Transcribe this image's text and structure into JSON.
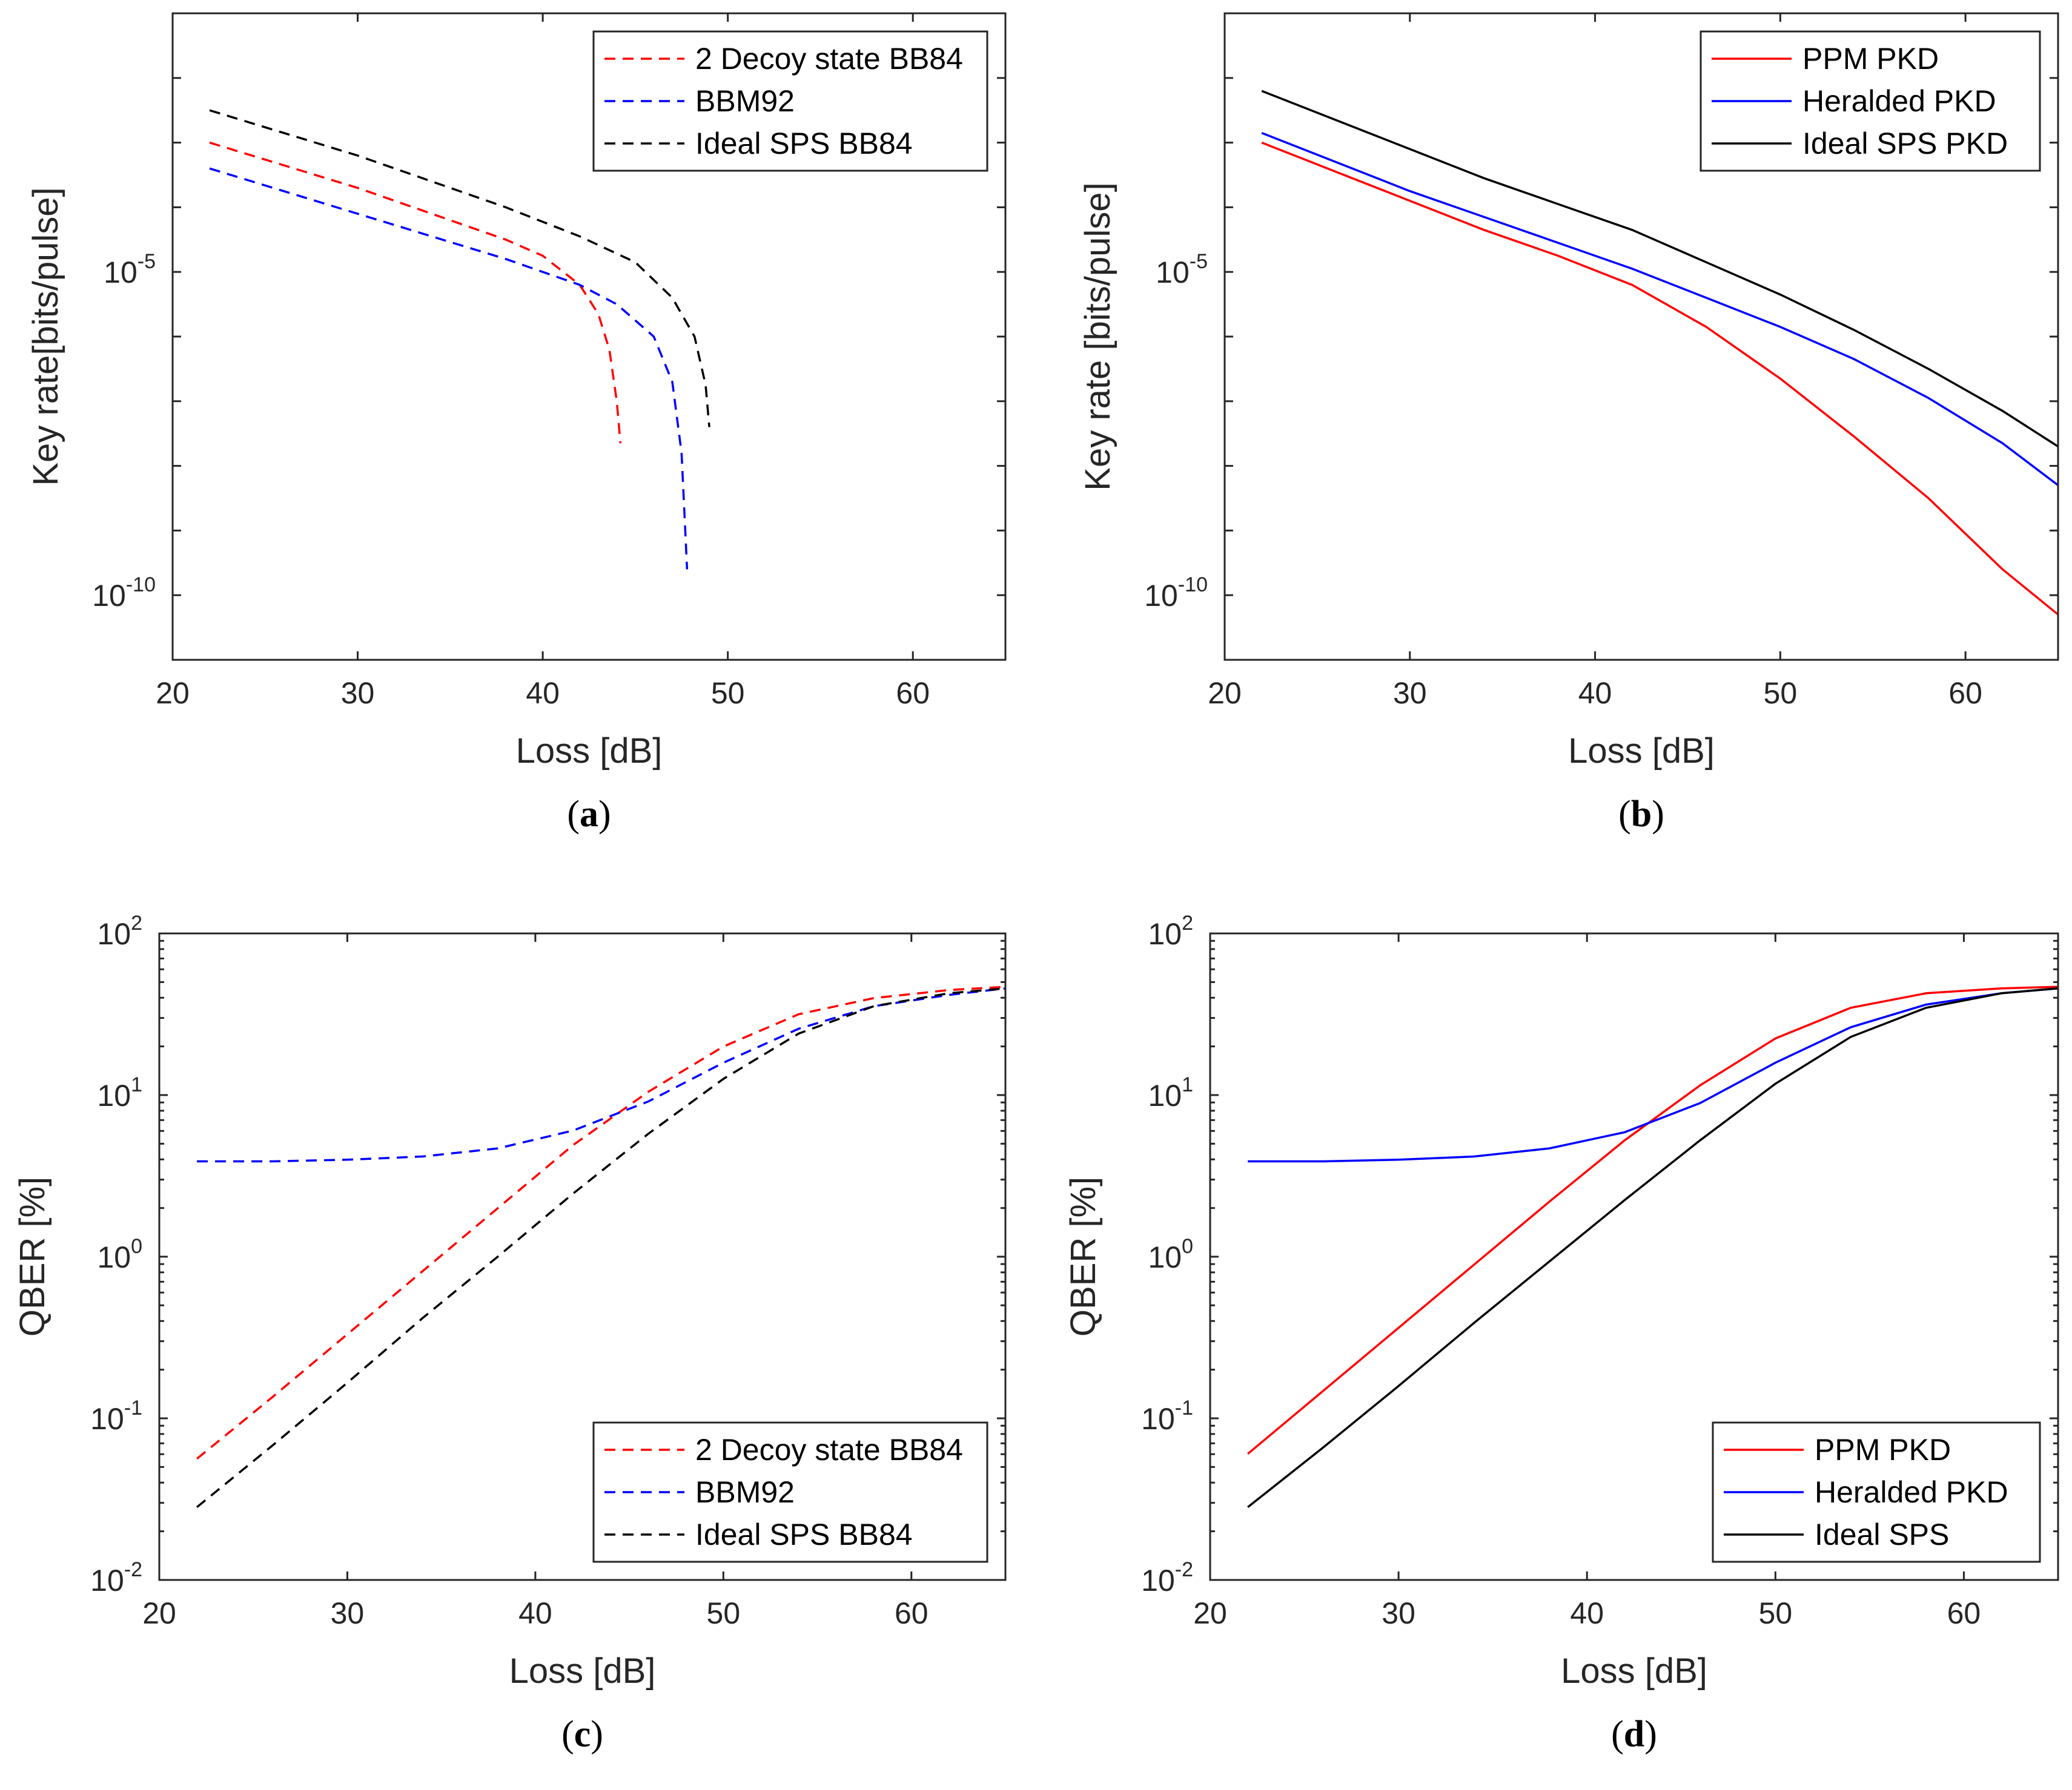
{
  "chart_data": [
    {
      "panel": "a",
      "caption": "a",
      "type": "line",
      "xlabel": "Loss [dB]",
      "ylabel": "Key rate[bits/pulse]",
      "xlim": [
        20,
        65
      ],
      "ylim_log10": [
        -11,
        -1
      ],
      "y_scale": "log",
      "xticks": [
        20,
        30,
        40,
        50,
        60
      ],
      "yticks_log10": [
        -10,
        -5
      ],
      "grid": false,
      "legend_position": "top-right",
      "series": [
        {
          "name": "2 Decoy state BB84",
          "color": "#ff0000",
          "dash": "dashed",
          "x": [
            22,
            26,
            30,
            34,
            38,
            40,
            42,
            43,
            43.6,
            44.0,
            44.2
          ],
          "log10_y": [
            -3.0,
            -3.35,
            -3.7,
            -4.1,
            -4.5,
            -4.75,
            -5.2,
            -5.65,
            -6.2,
            -7.0,
            -7.65
          ]
        },
        {
          "name": "BBM92",
          "color": "#0000ff",
          "dash": "dashed",
          "x": [
            22,
            26,
            30,
            34,
            38,
            42,
            44,
            46,
            47.0,
            47.5,
            47.7,
            47.8
          ],
          "log10_y": [
            -3.4,
            -3.75,
            -4.1,
            -4.45,
            -4.8,
            -5.2,
            -5.5,
            -6.0,
            -6.7,
            -7.8,
            -9.0,
            -9.6
          ]
        },
        {
          "name": "Ideal SPS BB84",
          "color": "#000000",
          "dash": "dashed",
          "x": [
            22,
            26,
            30,
            34,
            38,
            42,
            45,
            47,
            48.2,
            48.8,
            49.0
          ],
          "log10_y": [
            -2.5,
            -2.85,
            -3.2,
            -3.6,
            -4.0,
            -4.45,
            -4.85,
            -5.4,
            -6.0,
            -6.75,
            -7.4
          ]
        }
      ]
    },
    {
      "panel": "b",
      "caption": "b",
      "type": "line",
      "xlabel": "Loss [dB]",
      "ylabel": "Key rate [bits/pulse]",
      "xlim": [
        20,
        65
      ],
      "ylim_log10": [
        -11,
        -1
      ],
      "y_scale": "log",
      "xticks": [
        20,
        30,
        40,
        50,
        60
      ],
      "yticks_log10": [
        -10,
        -5
      ],
      "grid": false,
      "legend_position": "top-right",
      "series": [
        {
          "name": "PPM PKD",
          "color": "#ff0000",
          "dash": "solid",
          "x": [
            22,
            26,
            30,
            34,
            38,
            42,
            46,
            50,
            54,
            58,
            62,
            65
          ],
          "log10_y": [
            -3.0,
            -3.45,
            -3.9,
            -4.35,
            -4.75,
            -5.2,
            -5.85,
            -6.65,
            -7.55,
            -8.5,
            -9.6,
            -10.3
          ]
        },
        {
          "name": "Heralded PKD",
          "color": "#0000ff",
          "dash": "solid",
          "x": [
            22,
            26,
            30,
            34,
            38,
            42,
            46,
            50,
            54,
            58,
            62,
            65
          ],
          "log10_y": [
            -2.85,
            -3.3,
            -3.75,
            -4.15,
            -4.55,
            -4.95,
            -5.4,
            -5.85,
            -6.35,
            -6.95,
            -7.65,
            -8.3
          ]
        },
        {
          "name": "Ideal SPS PKD",
          "color": "#000000",
          "dash": "solid",
          "x": [
            22,
            26,
            30,
            34,
            38,
            42,
            46,
            50,
            54,
            58,
            62,
            65
          ],
          "log10_y": [
            -2.2,
            -2.65,
            -3.1,
            -3.55,
            -3.95,
            -4.35,
            -4.85,
            -5.35,
            -5.9,
            -6.5,
            -7.15,
            -7.7
          ]
        }
      ]
    },
    {
      "panel": "c",
      "caption": "c",
      "type": "line",
      "xlabel": "Loss [dB]",
      "ylabel": "QBER [%]",
      "xlim": [
        20,
        65
      ],
      "ylim_log10": [
        -2,
        2
      ],
      "y_scale": "log",
      "xticks": [
        20,
        30,
        40,
        50,
        60
      ],
      "yticks_log10": [
        -2,
        -1,
        0,
        1,
        2
      ],
      "grid": false,
      "legend_position": "bottom-right",
      "series": [
        {
          "name": "2 Decoy state BB84",
          "color": "#ff0000",
          "dash": "dashed",
          "x": [
            22,
            26,
            30,
            34,
            38,
            42,
            46,
            50,
            54,
            58,
            62,
            65
          ],
          "log10_y": [
            -1.25,
            -0.87,
            -0.48,
            -0.09,
            0.3,
            0.69,
            1.02,
            1.3,
            1.5,
            1.6,
            1.65,
            1.67
          ]
        },
        {
          "name": "BBM92",
          "color": "#0000ff",
          "dash": "dashed",
          "x": [
            22,
            26,
            30,
            34,
            38,
            42,
            46,
            50,
            54,
            58,
            62,
            65
          ],
          "log10_y": [
            0.59,
            0.59,
            0.6,
            0.62,
            0.67,
            0.78,
            0.96,
            1.2,
            1.41,
            1.55,
            1.62,
            1.66
          ]
        },
        {
          "name": "Ideal SPS BB84",
          "color": "#000000",
          "dash": "dashed",
          "x": [
            22,
            26,
            30,
            34,
            38,
            42,
            46,
            50,
            54,
            58,
            62,
            65
          ],
          "log10_y": [
            -1.55,
            -1.17,
            -0.78,
            -0.38,
            0.0,
            0.39,
            0.76,
            1.1,
            1.38,
            1.55,
            1.63,
            1.66
          ]
        }
      ]
    },
    {
      "panel": "d",
      "caption": "d",
      "type": "line",
      "xlabel": "Loss [dB]",
      "ylabel": "QBER [%]",
      "xlim": [
        20,
        65
      ],
      "ylim_log10": [
        -2,
        2
      ],
      "y_scale": "log",
      "xticks": [
        20,
        30,
        40,
        50,
        60
      ],
      "yticks_log10": [
        -2,
        -1,
        0,
        1,
        2
      ],
      "grid": false,
      "legend_position": "bottom-right",
      "series": [
        {
          "name": "PPM PKD",
          "color": "#ff0000",
          "dash": "solid",
          "x": [
            22,
            26,
            30,
            34,
            38,
            42,
            46,
            50,
            54,
            58,
            62,
            65
          ],
          "log10_y": [
            -1.22,
            -0.83,
            -0.44,
            -0.05,
            0.34,
            0.72,
            1.06,
            1.35,
            1.54,
            1.63,
            1.66,
            1.67
          ]
        },
        {
          "name": "Heralded PKD",
          "color": "#0000ff",
          "dash": "solid",
          "x": [
            22,
            26,
            30,
            34,
            38,
            42,
            46,
            50,
            54,
            58,
            62,
            65
          ],
          "log10_y": [
            0.59,
            0.59,
            0.6,
            0.62,
            0.67,
            0.77,
            0.95,
            1.2,
            1.42,
            1.56,
            1.63,
            1.66
          ]
        },
        {
          "name": "Ideal SPS",
          "color": "#000000",
          "dash": "solid",
          "x": [
            22,
            26,
            30,
            34,
            38,
            42,
            46,
            50,
            54,
            58,
            62,
            65
          ],
          "log10_y": [
            -1.55,
            -1.18,
            -0.8,
            -0.41,
            -0.03,
            0.35,
            0.72,
            1.07,
            1.36,
            1.54,
            1.63,
            1.66
          ]
        }
      ]
    }
  ]
}
